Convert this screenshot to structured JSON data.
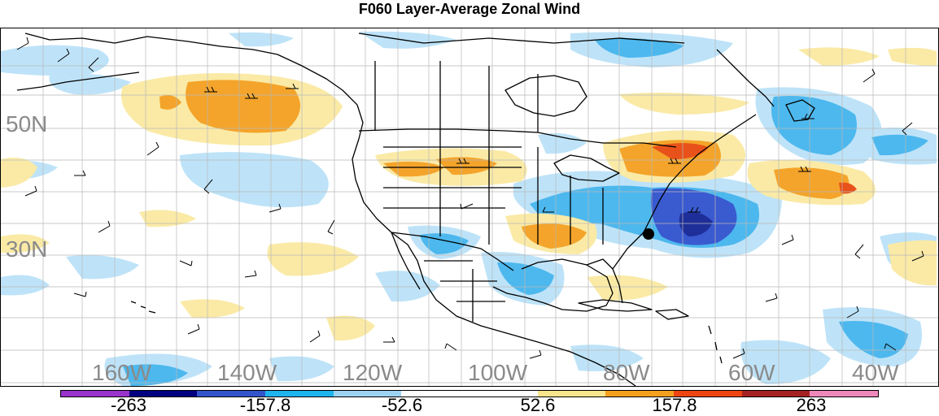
{
  "title": "F060 Layer-Average Zonal Wind",
  "latitude_labels": [
    "50N",
    "30N"
  ],
  "longitude_labels": [
    "160W",
    "140W",
    "120W",
    "100W",
    "80W",
    "60W",
    "40W"
  ],
  "colorbar": {
    "colors": [
      "#9933cc",
      "#000080",
      "#3355cc",
      "#1eb4ee",
      "#9dd2f2",
      "#ffffff",
      "#ffffff",
      "#f9e68c",
      "#f4a01e",
      "#ee4411",
      "#a52222",
      "#ee88bb"
    ],
    "labels": [
      "-263",
      "-157.8",
      "-52.6",
      "52.6",
      "157.8",
      "263"
    ]
  },
  "station_marker": "filled-circle",
  "negative_colors": {
    "light": "#bee3f8",
    "medium": "#4db8ee",
    "strong": "#3a5ad0",
    "deep": "#1f2f9a"
  },
  "positive_colors": {
    "light": "#faeaa6",
    "medium": "#f4a42a",
    "strong": "#e8521a",
    "deep": "#c02020"
  }
}
